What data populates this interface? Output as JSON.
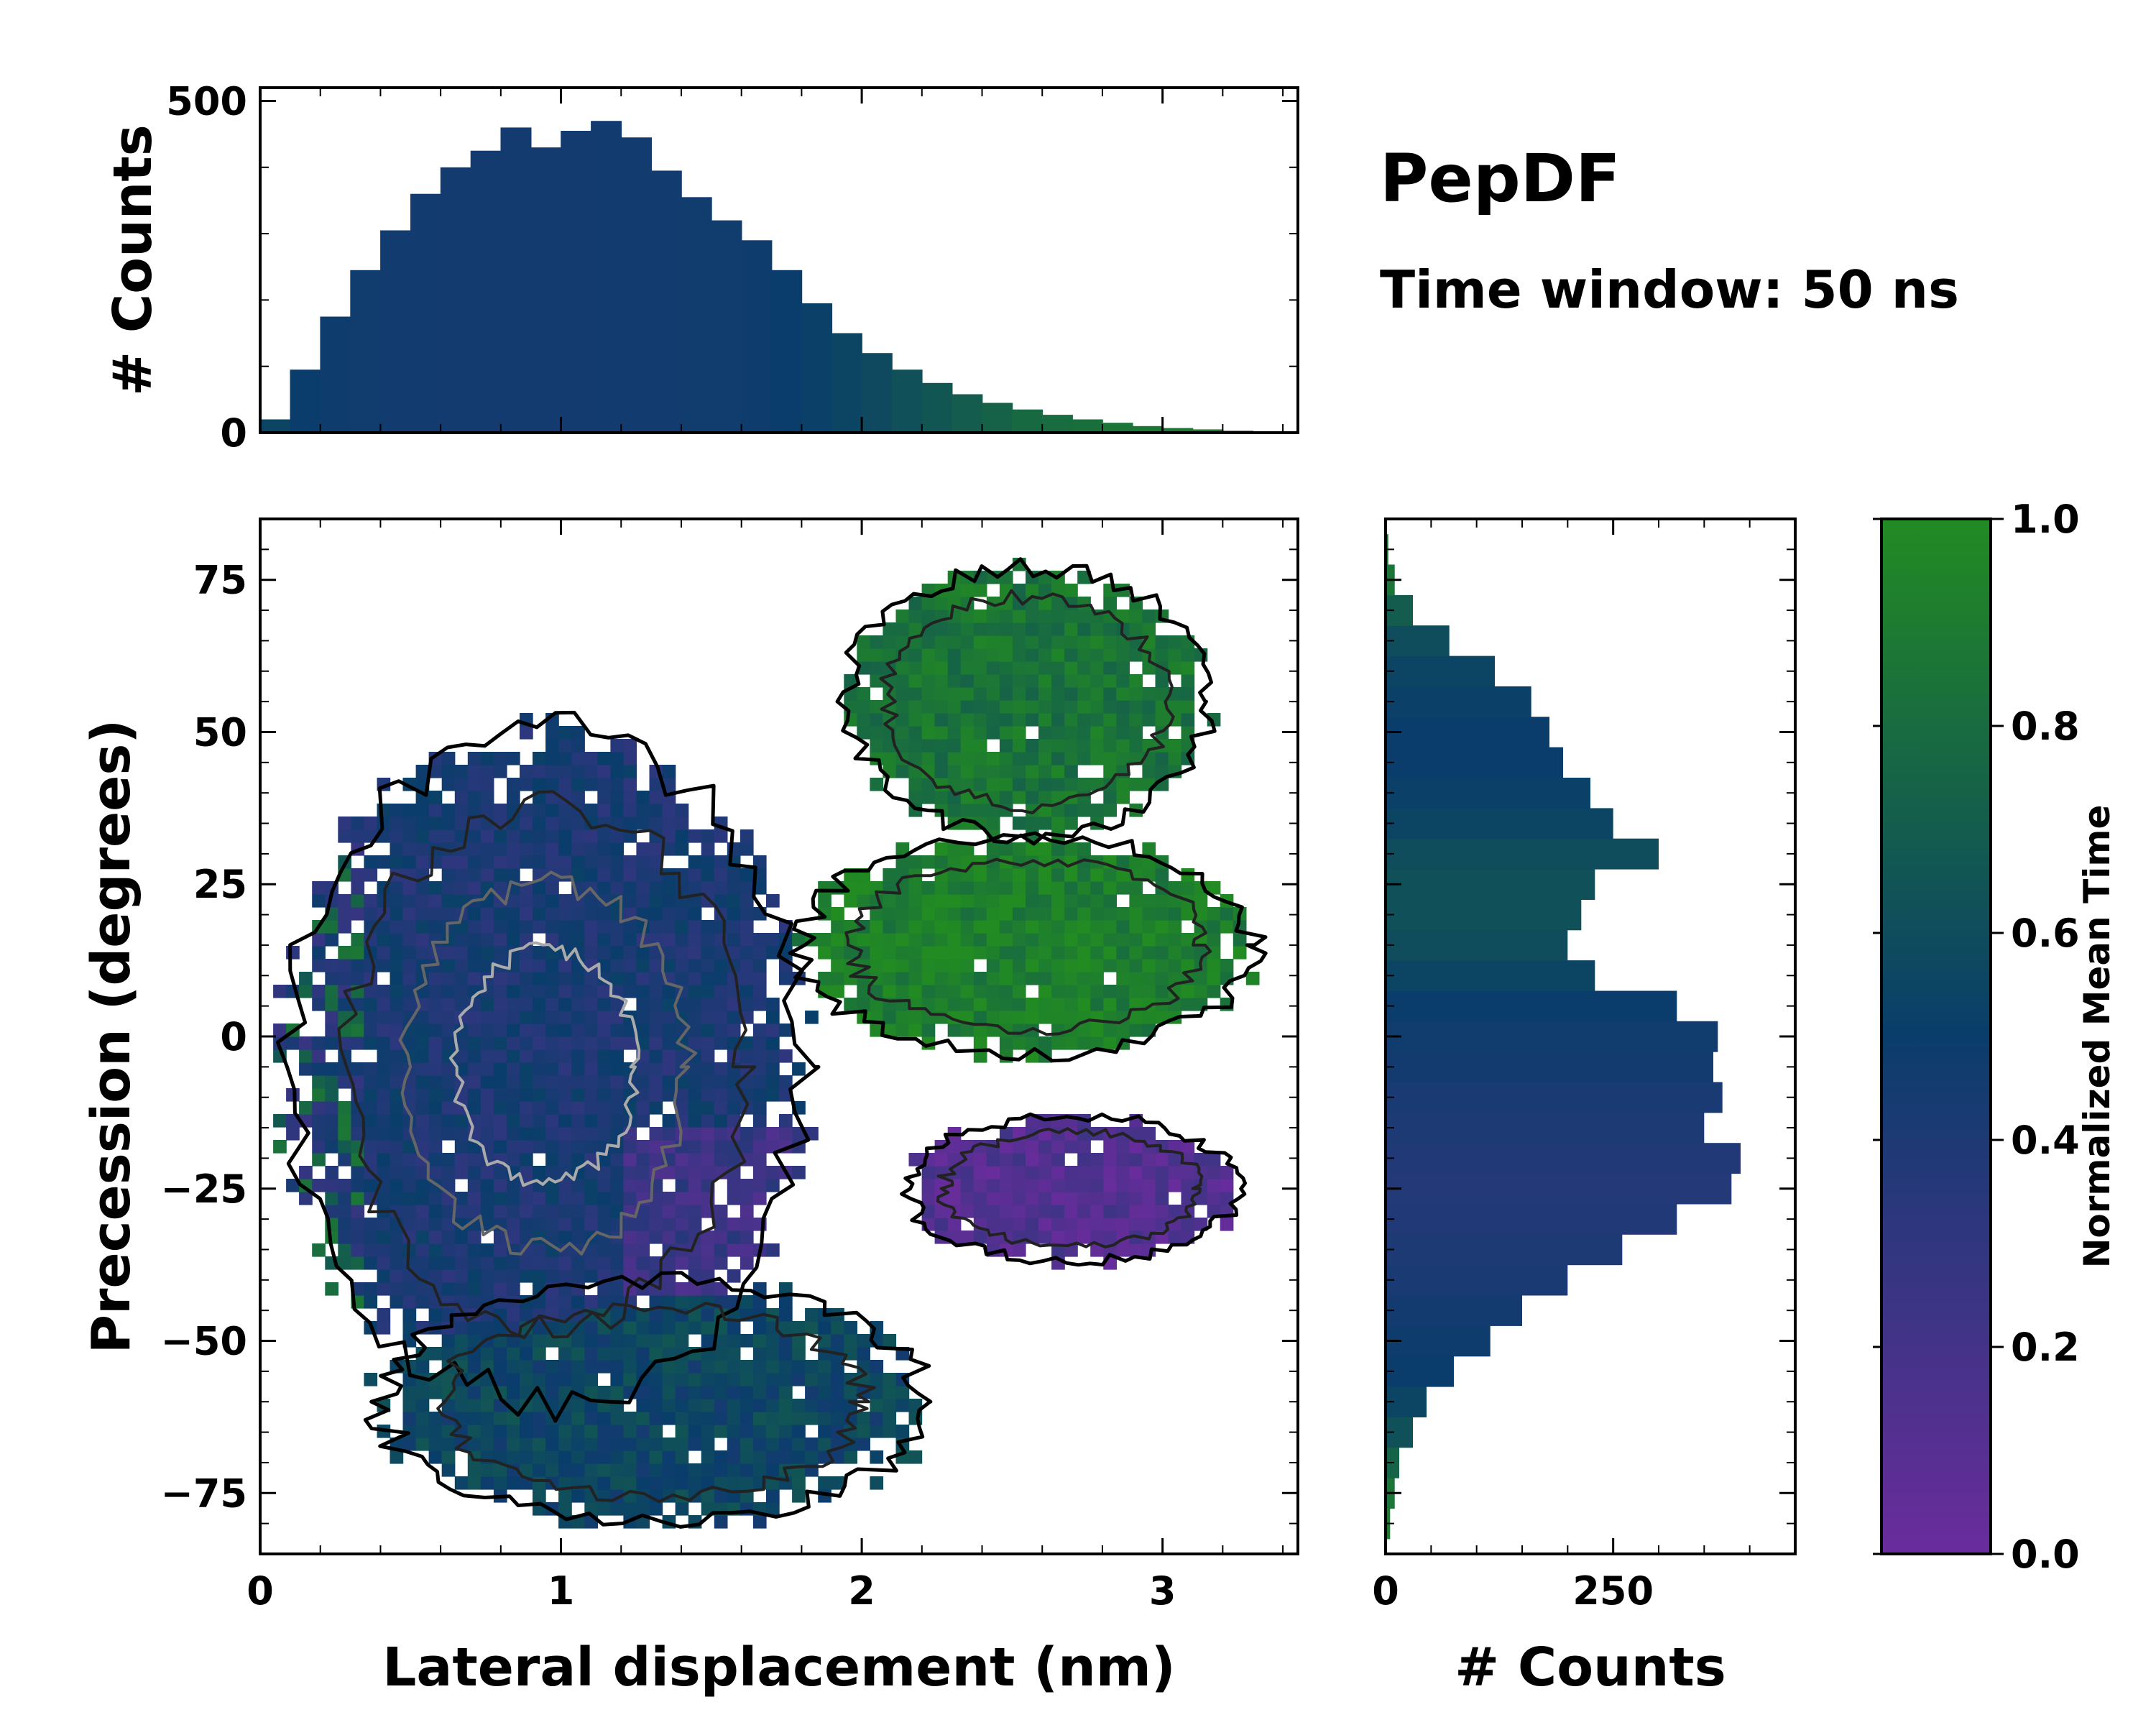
{
  "colors": {
    "low": "#6a2c9c",
    "mid": "#0a3d6b",
    "high": "#228b22",
    "hist": "#0a3d6b",
    "axis": "#000000"
  },
  "chart_data": [
    {
      "id": "main",
      "type": "heatmap",
      "title": "PepDF",
      "subtitle": "Time window: 50 ns",
      "xlabel": "Lateral displacement (nm)",
      "ylabel": "Precession (degrees)",
      "xlim": [
        0,
        3.45
      ],
      "ylim": [
        -85,
        85
      ],
      "xticks": [
        0,
        1,
        2,
        3
      ],
      "xticklabels": [
        "0",
        "1",
        "2",
        "3"
      ],
      "yticks": [
        -75,
        -50,
        -25,
        0,
        25,
        50,
        75
      ],
      "yticklabels": [
        "−75",
        "−50",
        "−25",
        "0",
        "25",
        "50",
        "75"
      ],
      "color_by": "Normalized Mean Time",
      "regions": [
        {
          "name": "core",
          "x_center": 0.95,
          "y_center": -5,
          "x_half_width": 0.85,
          "y_half_width": 55,
          "mean_time": 0.42
        },
        {
          "name": "upper-right-lobe",
          "x_center": 2.55,
          "y_center": 55,
          "x_half_width": 0.6,
          "y_half_width": 22,
          "mean_time": 0.85
        },
        {
          "name": "middle-right-lobe",
          "x_center": 2.55,
          "y_center": 15,
          "x_half_width": 0.75,
          "y_half_width": 18,
          "mean_time": 0.92
        },
        {
          "name": "lower-right-lobe",
          "x_center": 2.7,
          "y_center": -25,
          "x_half_width": 0.55,
          "y_half_width": 12,
          "mean_time": 0.12
        },
        {
          "name": "bottom-lobe",
          "x_center": 1.3,
          "y_center": -60,
          "x_half_width": 0.9,
          "y_half_width": 20,
          "mean_time": 0.55
        }
      ]
    },
    {
      "id": "top-histogram",
      "type": "bar",
      "ylabel": "# Counts",
      "ylim": [
        0,
        520
      ],
      "yticks": [
        0,
        500
      ],
      "yticklabels": [
        "0",
        "500"
      ],
      "x_range": [
        0,
        3.45
      ],
      "bin_centers": [
        0.05,
        0.15,
        0.25,
        0.35,
        0.45,
        0.55,
        0.65,
        0.75,
        0.85,
        0.95,
        1.05,
        1.15,
        1.25,
        1.35,
        1.45,
        1.55,
        1.65,
        1.75,
        1.85,
        1.95,
        2.05,
        2.15,
        2.25,
        2.35,
        2.45,
        2.55,
        2.65,
        2.75,
        2.85,
        2.95,
        3.05,
        3.15,
        3.25,
        3.35
      ],
      "values": [
        20,
        95,
        175,
        245,
        305,
        360,
        400,
        425,
        460,
        430,
        455,
        470,
        445,
        395,
        355,
        320,
        290,
        245,
        195,
        150,
        120,
        95,
        75,
        58,
        45,
        35,
        27,
        20,
        15,
        10,
        7,
        5,
        3,
        2
      ],
      "mean_time": [
        0.55,
        0.5,
        0.48,
        0.47,
        0.46,
        0.46,
        0.45,
        0.45,
        0.45,
        0.45,
        0.45,
        0.46,
        0.46,
        0.46,
        0.47,
        0.47,
        0.48,
        0.5,
        0.52,
        0.55,
        0.58,
        0.62,
        0.66,
        0.7,
        0.74,
        0.78,
        0.8,
        0.82,
        0.85,
        0.87,
        0.88,
        0.9,
        0.9,
        0.9
      ]
    },
    {
      "id": "right-histogram",
      "type": "bar",
      "orientation": "horizontal",
      "xlabel": "# Counts",
      "xlim": [
        0,
        450
      ],
      "xticks": [
        0,
        250
      ],
      "xticklabels": [
        "0",
        "250"
      ],
      "y_range": [
        -85,
        85
      ],
      "bin_centers": [
        -80,
        -75,
        -70,
        -65,
        -60,
        -55,
        -50,
        -45,
        -40,
        -35,
        -30,
        -25,
        -20,
        -15,
        -10,
        -5,
        0,
        5,
        10,
        15,
        20,
        25,
        30,
        35,
        40,
        45,
        50,
        55,
        60,
        65,
        70,
        75,
        80
      ],
      "values": [
        5,
        10,
        15,
        30,
        45,
        75,
        115,
        150,
        200,
        260,
        320,
        380,
        390,
        350,
        370,
        360,
        365,
        320,
        230,
        200,
        215,
        230,
        300,
        250,
        225,
        195,
        180,
        160,
        120,
        70,
        30,
        10,
        3
      ],
      "mean_time": [
        0.9,
        0.85,
        0.75,
        0.62,
        0.55,
        0.5,
        0.48,
        0.45,
        0.42,
        0.4,
        0.38,
        0.37,
        0.38,
        0.4,
        0.42,
        0.45,
        0.47,
        0.5,
        0.55,
        0.6,
        0.62,
        0.62,
        0.6,
        0.55,
        0.52,
        0.5,
        0.5,
        0.52,
        0.55,
        0.6,
        0.7,
        0.85,
        0.9
      ]
    },
    {
      "id": "colorbar",
      "type": "colorbar",
      "label": "Normalized Mean Time",
      "range": [
        0.0,
        1.0
      ],
      "ticks": [
        0.0,
        0.2,
        0.4,
        0.6,
        0.8,
        1.0
      ],
      "ticklabels": [
        "0.0",
        "0.2",
        "0.4",
        "0.6",
        "0.8",
        "1.0"
      ]
    }
  ]
}
